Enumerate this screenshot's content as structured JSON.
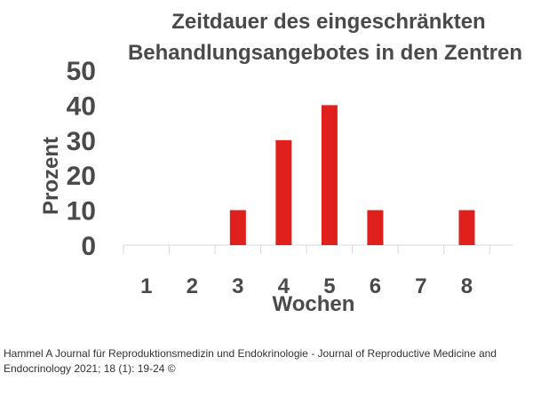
{
  "chart_data": {
    "type": "bar",
    "title_line1": "Zeitdauer des eingeschränkten",
    "title_line2": "Behandlungsangebotes in den Zentren",
    "xlabel": "Wochen",
    "ylabel": "Prozent",
    "categories": [
      "1",
      "2",
      "3",
      "4",
      "5",
      "6",
      "7",
      "8"
    ],
    "values": [
      0,
      0,
      10,
      30,
      40,
      10,
      0,
      10
    ],
    "yticks": [
      "0",
      "10",
      "20",
      "30",
      "40",
      "50"
    ],
    "ylim": [
      0,
      50
    ],
    "grid": false,
    "legend": "none",
    "bar_color": "#e0201c",
    "text_color": "#4a4a4a"
  },
  "caption": "Hammel A Journal für Reproduktionsmedizin und Endokrinologie - Journal of Reproductive Medicine and Endocrinology 2021; 18 (1): 19-24 ©"
}
